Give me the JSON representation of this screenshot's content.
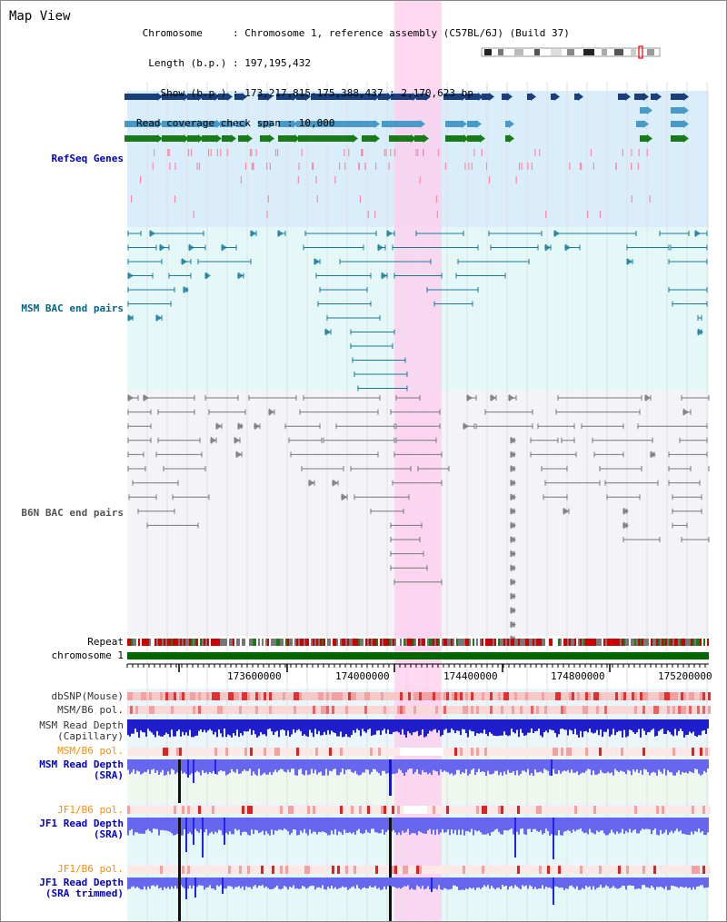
{
  "app": {
    "title": "Map View"
  },
  "header": {
    "lines": [
      " Chromosome     : Chromosome 1, reference assembly (C57BL/6J) (Build 37)",
      "  Length (b.p.) : 197,195,432",
      "    Show (b.p.) : 173,217,815-175,388,437 : 2,170,623 bp",
      "Read coverage check span : 10,000"
    ]
  },
  "tracks": {
    "refseq": {
      "label": "RefSeq Genes",
      "color": "#0000aa"
    },
    "msm_bac": {
      "label": "MSM BAC end pairs",
      "color": "#006688"
    },
    "b6n_bac": {
      "label": "B6N BAC end pairs",
      "color": "#555555"
    },
    "repeat": {
      "label": "Repeat"
    },
    "chrom": {
      "label": "chromosome 1"
    },
    "dbsnp": {
      "label": "dbSNP(Mouse)"
    },
    "msm_b6_pol1": {
      "label": "MSM/B6 pol."
    },
    "msm_depth_cap": {
      "label": "MSM Read Depth\n(Capillary)"
    },
    "msm_b6_pol2": {
      "label": "MSM/B6 pol.",
      "color": "#ff8c00"
    },
    "msm_depth_sra": {
      "label": "MSM Read Depth\n(SRA)",
      "color": "#0000cc"
    },
    "jf1_b6_pol1": {
      "label": "JF1/B6 pol.",
      "color": "#ff8c00"
    },
    "jf1_depth_sra": {
      "label": "JF1 Read Depth\n(SRA)",
      "color": "#0000cc"
    },
    "jf1_b6_pol2": {
      "label": "JF1/B6 pol.",
      "color": "#ff8c00"
    },
    "jf1_depth_trim": {
      "label": "JF1 Read Depth\n(SRA trimmed)",
      "color": "#0000cc"
    }
  },
  "axis": {
    "ticks": [
      "173600000",
      "174000000",
      "174400000",
      "174800000",
      "175200000"
    ]
  },
  "colors": {
    "refseq_bg": "#d9eefa",
    "msm_bg": "#e4f8f8",
    "b6n_bg": "#f4f4f8",
    "highlight": "#ffccee",
    "gene_dark": "#1a3f7a",
    "gene_mid": "#4a9ac8",
    "gene_green": "#1a7a1a",
    "chrom_bar": "#006600",
    "depth_blue": "#2222ee",
    "depth_light": "#6666ee"
  }
}
